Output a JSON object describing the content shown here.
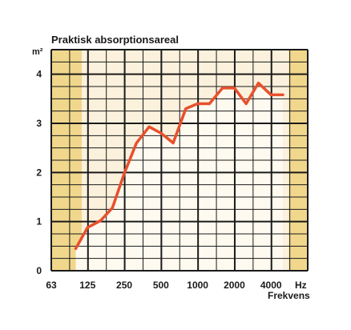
{
  "chart_data": {
    "type": "line",
    "title": "Praktisk absorptionsareal",
    "ylabel": "m²",
    "xlabel": "Frekvens",
    "x_unit": "Hz",
    "x_scale": "log",
    "x_tick_labels": [
      "63",
      "125",
      "250",
      "500",
      "1000",
      "2000",
      "4000"
    ],
    "x_ticks": [
      63,
      125,
      250,
      500,
      1000,
      2000,
      4000
    ],
    "xlim": [
      63,
      8000
    ],
    "ylim": [
      0,
      4.5
    ],
    "y_ticks": [
      0,
      1,
      2,
      3,
      4
    ],
    "grid": true,
    "series": [
      {
        "x": [
          100,
          125,
          160,
          200,
          250,
          315,
          400,
          500,
          630,
          800,
          1000,
          1250,
          1600,
          2000,
          2500,
          3150,
          4000,
          5000
        ],
        "y": [
          0.45,
          0.88,
          1.02,
          1.28,
          1.98,
          2.6,
          2.93,
          2.8,
          2.6,
          3.3,
          3.4,
          3.4,
          3.72,
          3.72,
          3.4,
          3.82,
          3.58,
          3.58
        ]
      }
    ],
    "colors": {
      "line": "#e8502d",
      "band_outer": "#f0d78c",
      "band_inner": "#fbf1dc",
      "fill_under": "#fffaf0",
      "grid": "#1a1a1a"
    },
    "shaded_regions": [
      {
        "x_from": 63,
        "x_to": 112,
        "color_key": "band_outer"
      },
      {
        "x_from": 112,
        "x_to": 5600,
        "color_key": "band_inner"
      },
      {
        "x_from": 5600,
        "x_to": 8000,
        "color_key": "band_outer"
      }
    ]
  }
}
